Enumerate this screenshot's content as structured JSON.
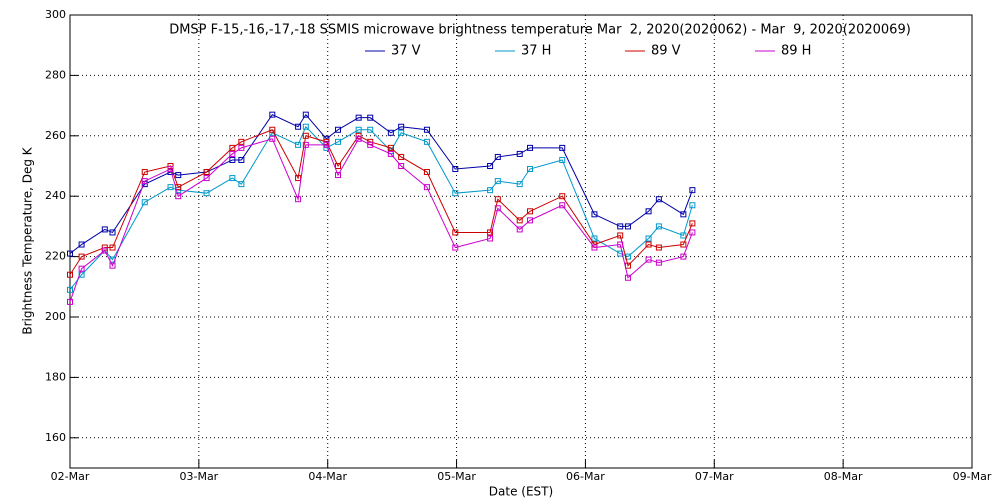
{
  "chart_data": {
    "type": "line",
    "title": "DMSP F-15,-16,-17,-18 SSMIS microwave brightness temperature Mar  2, 2020(2020062) - Mar  9, 2020(2020069)",
    "x_label": "Date (EST)",
    "y_label": "Brightness Temperature, Deg K",
    "x": [
      0,
      0.09,
      0.27,
      0.33,
      0.58,
      0.78,
      0.84,
      1.06,
      1.26,
      1.33,
      1.57,
      1.77,
      1.83,
      1.99,
      2.08,
      2.24,
      2.33,
      2.49,
      2.57,
      2.77,
      2.99,
      3.26,
      3.32,
      3.49,
      3.57,
      3.82,
      4.07,
      4.27,
      4.33,
      4.49,
      4.57,
      4.76,
      4.83
    ],
    "series": [
      {
        "name": "37 V",
        "color": "#0000aa",
        "values": [
          221,
          224,
          229,
          228,
          244,
          248,
          247,
          248,
          252,
          252,
          267,
          263,
          267,
          259,
          262,
          266,
          266,
          261,
          263,
          262,
          249,
          250,
          253,
          254,
          256,
          256,
          234,
          230,
          230,
          235,
          239,
          234,
          242
        ]
      },
      {
        "name": "37 H",
        "color": "#0099cc",
        "values": [
          209,
          214,
          222,
          219,
          238,
          243,
          242,
          241,
          246,
          244,
          261,
          257,
          263,
          256,
          258,
          262,
          262,
          255,
          261,
          258,
          241,
          242,
          245,
          244,
          249,
          252,
          226,
          221,
          220,
          226,
          230,
          227,
          237
        ]
      },
      {
        "name": "89 V",
        "color": "#cc0000",
        "values": [
          214,
          220,
          223,
          223,
          248,
          250,
          243,
          248,
          256,
          258,
          262,
          246,
          260,
          258,
          250,
          260,
          258,
          256,
          253,
          248,
          228,
          228,
          239,
          232,
          235,
          240,
          224,
          227,
          217,
          224,
          223,
          224,
          231
        ]
      },
      {
        "name": "89 H",
        "color": "#cc00cc",
        "values": [
          205,
          216,
          222,
          217,
          245,
          249,
          240,
          246,
          254,
          256,
          259,
          239,
          257,
          257,
          247,
          259,
          257,
          254,
          250,
          243,
          223,
          226,
          236,
          229,
          232,
          237,
          223,
          224,
          213,
          219,
          218,
          220,
          228
        ]
      }
    ],
    "xlim": [
      0,
      7
    ],
    "xticks": [
      {
        "value": 0,
        "label": "02-Mar"
      },
      {
        "value": 1,
        "label": "03-Mar"
      },
      {
        "value": 2,
        "label": "04-Mar"
      },
      {
        "value": 3,
        "label": "05-Mar"
      },
      {
        "value": 4,
        "label": "06-Mar"
      },
      {
        "value": 5,
        "label": "07-Mar"
      },
      {
        "value": 6,
        "label": "08-Mar"
      },
      {
        "value": 7,
        "label": "09-Mar"
      }
    ],
    "ylim": [
      150,
      300
    ],
    "yticks": [
      160,
      180,
      200,
      220,
      240,
      260,
      280,
      300
    ],
    "grid": true
  }
}
